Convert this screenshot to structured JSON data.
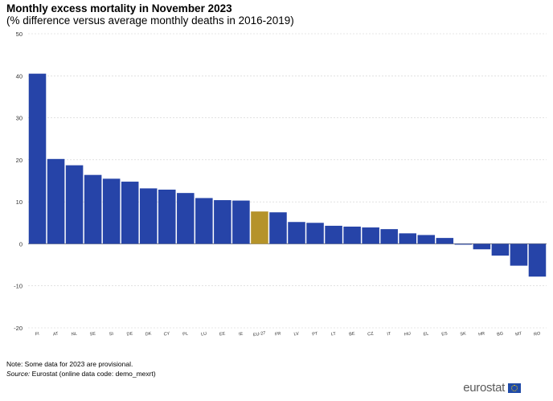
{
  "header": {
    "title": "Monthly excess mortality in November 2023",
    "subtitle": "(% difference versus average monthly deaths in 2016-2019)"
  },
  "footer": {
    "note": "Note: Some data for 2023 are provisional.",
    "source_label": "Source:",
    "source_text": " Eurostat (online data code: demo_mexrt)",
    "logo_text": "eurostat",
    "logo_icon": "eu-flag-icon"
  },
  "chart_data": {
    "type": "bar",
    "title": "Monthly excess mortality in November 2023",
    "subtitle": "(% difference versus average monthly deaths in 2016-2019)",
    "xlabel": "",
    "ylabel": "",
    "ylim": [
      -20,
      50
    ],
    "yticks": [
      -20,
      -10,
      0,
      10,
      20,
      30,
      40,
      50
    ],
    "grid": true,
    "categories": [
      "FI",
      "AT",
      "NL",
      "SE",
      "SI",
      "DE",
      "DK",
      "CY",
      "PL",
      "LU",
      "EE",
      "IE",
      "EU-27",
      "FR",
      "LV",
      "PT",
      "LT",
      "BE",
      "CZ",
      "IT",
      "HU",
      "EL",
      "ES",
      "SK",
      "HR",
      "BG",
      "MT",
      "RO"
    ],
    "values": [
      40.5,
      20.2,
      18.7,
      16.4,
      15.5,
      14.8,
      13.2,
      12.9,
      12.1,
      10.9,
      10.4,
      10.3,
      7.7,
      7.5,
      5.2,
      5.0,
      4.3,
      4.1,
      3.9,
      3.5,
      2.5,
      2.1,
      1.4,
      -0.2,
      -1.3,
      -2.8,
      -5.2,
      -7.8
    ],
    "colors": {
      "default": "#2644a8",
      "highlight": "#b5932a",
      "highlight_category": "EU-27",
      "grid": "#cfcfcf",
      "axis": "#7a7a7a"
    }
  }
}
